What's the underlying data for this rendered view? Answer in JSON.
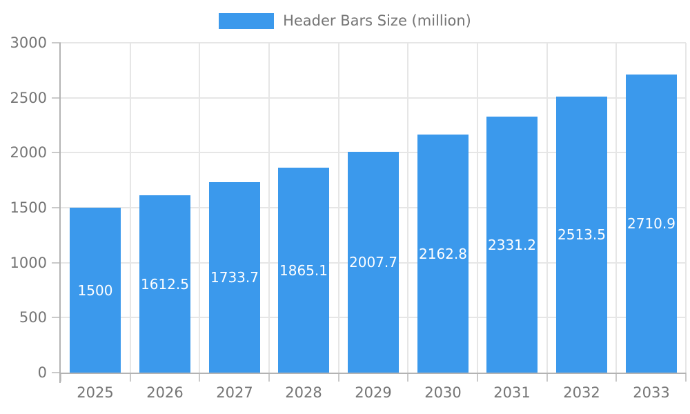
{
  "legend": {
    "label": "Header Bars Size (million)"
  },
  "chart_data": {
    "type": "bar",
    "title": "",
    "series_name": "Header Bars Size (million)",
    "categories": [
      "2025",
      "2026",
      "2027",
      "2028",
      "2029",
      "2030",
      "2031",
      "2032",
      "2033"
    ],
    "values": [
      1500,
      1612.5,
      1733.7,
      1865.1,
      2007.7,
      2162.8,
      2331.2,
      2513.5,
      2710.9
    ],
    "value_labels": [
      "1500",
      "1612.5",
      "1733.7",
      "1865.1",
      "2007.7",
      "2162.8",
      "2331.2",
      "2513.5",
      "2710.9"
    ],
    "xlabel": "",
    "ylabel": "",
    "ylim": [
      0,
      3000
    ],
    "yticks": [
      0,
      500,
      1000,
      1500,
      2000,
      2500,
      3000
    ],
    "grid": true,
    "legend_position": "top",
    "colors": {
      "bar": "#3b99ec",
      "bar_label": "#ffffff",
      "axis_text": "#757575",
      "axis_line": "#b3b3b3",
      "gridline": "#e6e6e6",
      "tick": "#c9c9c9",
      "background": "#ffffff"
    }
  }
}
